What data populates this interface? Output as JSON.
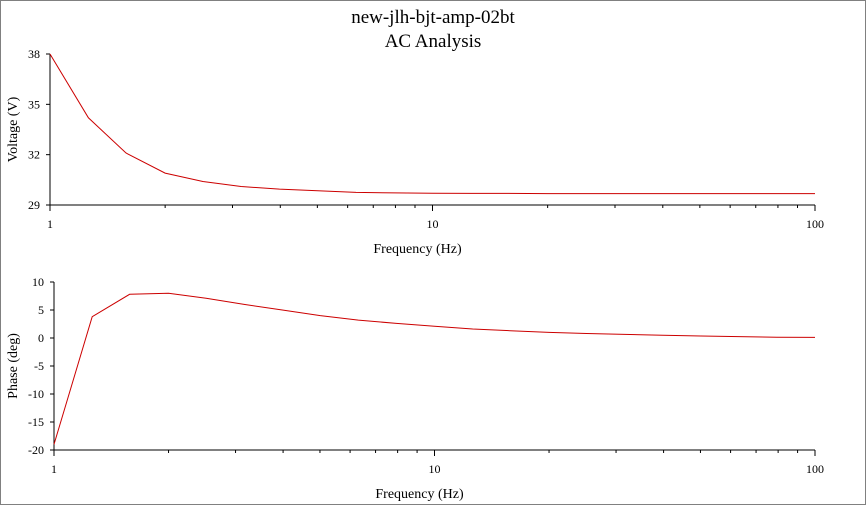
{
  "window": {
    "title_line1": "new-jlh-bjt-amp-02bt",
    "title_line2": "AC Analysis"
  },
  "colors": {
    "series": "#cc0000",
    "axis": "#000000",
    "frame_border": "#808080"
  },
  "chart_data": [
    {
      "type": "line",
      "title": "new-jlh-bjt-amp-02bt AC Analysis",
      "xlabel": "Frequency (Hz)",
      "ylabel": "Voltage (V)",
      "xscale": "log",
      "xlim": [
        1,
        100
      ],
      "ylim": [
        29,
        38
      ],
      "xticks": [
        "1",
        "10",
        "100"
      ],
      "yticks": [
        "29",
        "32",
        "35",
        "38"
      ],
      "grid": false,
      "series": [
        {
          "x": [
            1,
            1.26,
            1.58,
            2.0,
            2.51,
            3.16,
            3.98,
            5.01,
            6.31,
            7.94,
            10,
            12.6,
            15.8,
            20,
            25.1,
            31.6,
            39.8,
            50.1,
            63.1,
            79.4,
            100
          ],
          "values": [
            38.0,
            34.2,
            32.1,
            30.9,
            30.4,
            30.1,
            29.95,
            29.85,
            29.75,
            29.72,
            29.7,
            29.69,
            29.69,
            29.68,
            29.68,
            29.68,
            29.68,
            29.68,
            29.68,
            29.68,
            29.68
          ]
        }
      ]
    },
    {
      "type": "line",
      "xlabel": "Frequency (Hz)",
      "ylabel": "Phase (deg)",
      "xscale": "log",
      "xlim": [
        1,
        100
      ],
      "ylim": [
        -20,
        10
      ],
      "xticks": [
        "1",
        "10",
        "100"
      ],
      "yticks": [
        "10",
        "5",
        "0",
        "-5",
        "-10",
        "-15",
        "-20"
      ],
      "grid": false,
      "series": [
        {
          "x": [
            1,
            1.26,
            1.58,
            2.0,
            2.51,
            3.16,
            3.98,
            5.01,
            6.31,
            7.94,
            10,
            12.6,
            15.8,
            20,
            25.1,
            31.6,
            39.8,
            50.1,
            63.1,
            79.4,
            100
          ],
          "values": [
            -19.0,
            3.8,
            7.8,
            8.0,
            7.1,
            6.0,
            5.0,
            4.0,
            3.2,
            2.6,
            2.1,
            1.6,
            1.3,
            1.0,
            0.8,
            0.65,
            0.5,
            0.35,
            0.25,
            0.15,
            0.1
          ]
        }
      ]
    }
  ]
}
